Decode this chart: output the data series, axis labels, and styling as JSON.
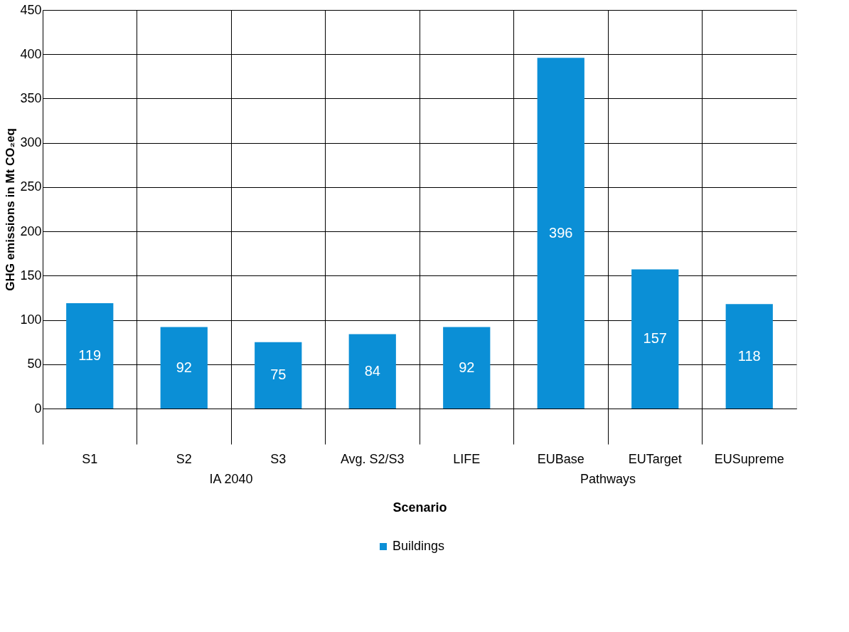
{
  "chart_data": {
    "type": "bar",
    "xlabel": "Scenario",
    "ylabel": "GHG emissions in Mt CO₂eq",
    "categories": [
      "S1",
      "S2",
      "S3",
      "Avg. S2/S3",
      "LIFE",
      "EUBase",
      "EUTarget",
      "EUSupreme"
    ],
    "series": [
      {
        "name": "Buildings",
        "color": "#0b8fd6",
        "values": [
          119,
          92,
          75,
          84,
          92,
          396,
          157,
          118
        ]
      }
    ],
    "ylim": [
      0,
      450
    ],
    "yticks": [
      0,
      50,
      100,
      150,
      200,
      250,
      300,
      350,
      400,
      450
    ],
    "grid": true,
    "legend": "bottom",
    "data_labels": true,
    "annotations": [
      "IA 2040",
      "Pathways"
    ]
  }
}
